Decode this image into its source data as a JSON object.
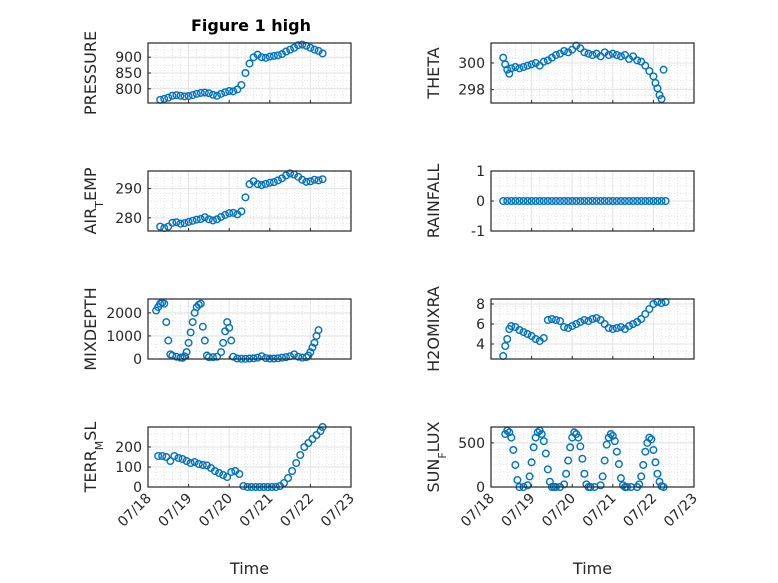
{
  "figure_title": "Figure 1 high",
  "marker_color": "#0072BD",
  "chart_data": [
    {
      "type": "scatter",
      "ylabel": "PRESSURE",
      "title": "Figure 1 high",
      "xlabel": "",
      "xlim": [
        "07/18",
        "07/23"
      ],
      "ylim": [
        755,
        945
      ],
      "yticks": [
        "800",
        "850",
        "900"
      ],
      "grid": true,
      "minor_grid": true,
      "show_xticklabels": false,
      "x": [
        18.3,
        18.4,
        18.5,
        18.6,
        18.7,
        18.8,
        18.9,
        19.0,
        19.1,
        19.2,
        19.3,
        19.4,
        19.5,
        19.6,
        19.7,
        19.8,
        19.9,
        20.0,
        20.1,
        20.2,
        20.3,
        20.4,
        20.5,
        20.6,
        20.7,
        20.8,
        20.9,
        21.0,
        21.1,
        21.2,
        21.3,
        21.4,
        21.5,
        21.6,
        21.7,
        21.8,
        21.9,
        22.0,
        22.1,
        22.2,
        22.3
      ],
      "y": [
        765,
        768,
        772,
        778,
        780,
        778,
        776,
        777,
        780,
        784,
        787,
        788,
        786,
        781,
        778,
        784,
        789,
        793,
        792,
        798,
        812,
        850,
        880,
        900,
        908,
        900,
        898,
        902,
        904,
        906,
        910,
        918,
        924,
        930,
        938,
        940,
        936,
        930,
        924,
        920,
        912
      ]
    },
    {
      "type": "scatter",
      "ylabel": "THETA",
      "title": "",
      "xlabel": "",
      "xlim": [
        "07/18",
        "07/23"
      ],
      "ylim": [
        297,
        301.5
      ],
      "yticks": [
        "298",
        "300"
      ],
      "grid": true,
      "minor_grid": true,
      "show_xticklabels": false,
      "x": [
        18.3,
        18.35,
        18.4,
        18.45,
        18.5,
        18.6,
        18.7,
        18.8,
        18.9,
        19.0,
        19.1,
        19.2,
        19.3,
        19.4,
        19.5,
        19.6,
        19.7,
        19.8,
        19.9,
        20.0,
        20.1,
        20.2,
        20.3,
        20.4,
        20.5,
        20.6,
        20.7,
        20.8,
        20.9,
        21.0,
        21.1,
        21.2,
        21.3,
        21.4,
        21.5,
        21.6,
        21.7,
        21.8,
        21.9,
        22.0,
        22.05,
        22.1,
        22.15,
        22.2,
        22.25
      ],
      "y": [
        300.4,
        299.9,
        299.5,
        299.2,
        299.6,
        299.7,
        299.6,
        299.7,
        299.8,
        299.9,
        300.0,
        299.8,
        300.1,
        300.2,
        300.4,
        300.6,
        300.7,
        300.9,
        300.8,
        301.0,
        301.3,
        301.1,
        300.8,
        300.7,
        300.6,
        300.7,
        300.5,
        300.8,
        300.6,
        300.7,
        300.6,
        300.5,
        300.6,
        300.3,
        300.5,
        300.2,
        300.1,
        299.8,
        299.4,
        299.0,
        298.5,
        298.1,
        297.6,
        297.3,
        299.5
      ]
    },
    {
      "type": "scatter",
      "ylabel": "AIR_TEMP",
      "title": "",
      "xlabel": "",
      "xlim": [
        "07/18",
        "07/23"
      ],
      "ylim": [
        275.5,
        296
      ],
      "yticks": [
        "280",
        "290"
      ],
      "grid": true,
      "minor_grid": true,
      "show_xticklabels": false,
      "x": [
        18.3,
        18.4,
        18.5,
        18.6,
        18.7,
        18.8,
        18.9,
        19.0,
        19.1,
        19.2,
        19.3,
        19.4,
        19.5,
        19.6,
        19.7,
        19.8,
        19.9,
        20.0,
        20.1,
        20.2,
        20.3,
        20.4,
        20.5,
        20.6,
        20.7,
        20.8,
        20.9,
        21.0,
        21.1,
        21.2,
        21.3,
        21.4,
        21.5,
        21.6,
        21.7,
        21.8,
        21.9,
        22.0,
        22.1,
        22.2,
        22.3
      ],
      "y": [
        277,
        276.5,
        277,
        278.3,
        278.5,
        278,
        278.2,
        278.6,
        279,
        279.4,
        279.6,
        280.2,
        279.5,
        279.1,
        279.5,
        280.3,
        281,
        281.6,
        281.7,
        281.2,
        282.2,
        287,
        291.5,
        292.5,
        291.5,
        291.2,
        291.6,
        292,
        292.2,
        292.8,
        293.5,
        294.5,
        295.2,
        294.8,
        294,
        293,
        292.3,
        292.5,
        293,
        292.8,
        293.2
      ]
    },
    {
      "type": "scatter",
      "ylabel": "RAINFALL",
      "title": "",
      "xlabel": "",
      "xlim": [
        "07/18",
        "07/23"
      ],
      "ylim": [
        -1,
        1
      ],
      "yticks": [
        "-1",
        "0",
        "1"
      ],
      "grid": true,
      "minor_grid": true,
      "show_xticklabels": false,
      "x": [
        18.3,
        18.4,
        18.5,
        18.6,
        18.7,
        18.8,
        18.9,
        19.0,
        19.1,
        19.2,
        19.3,
        19.4,
        19.5,
        19.6,
        19.7,
        19.8,
        19.9,
        20.0,
        20.1,
        20.2,
        20.3,
        20.4,
        20.5,
        20.6,
        20.7,
        20.8,
        20.9,
        21.0,
        21.1,
        21.2,
        21.3,
        21.4,
        21.5,
        21.6,
        21.7,
        21.8,
        21.9,
        22.0,
        22.1,
        22.2,
        22.3
      ],
      "y": [
        0,
        0,
        0,
        0,
        0,
        0,
        0,
        0,
        0,
        0,
        0,
        0,
        0,
        0,
        0,
        0,
        0,
        0,
        0,
        0,
        0,
        0,
        0,
        0,
        0,
        0,
        0,
        0,
        0,
        0,
        0,
        0,
        0,
        0,
        0,
        0,
        0,
        0,
        0,
        0,
        0
      ]
    },
    {
      "type": "scatter",
      "ylabel": "MIXDEPTH",
      "title": "",
      "xlabel": "",
      "xlim": [
        "07/18",
        "07/23"
      ],
      "ylim": [
        0,
        2600
      ],
      "yticks": [
        "0",
        "1000",
        "2000"
      ],
      "grid": true,
      "minor_grid": true,
      "show_xticklabels": false,
      "x": [
        18.2,
        18.25,
        18.3,
        18.35,
        18.4,
        18.45,
        18.5,
        18.55,
        18.6,
        18.7,
        18.8,
        18.85,
        18.9,
        18.95,
        19.0,
        19.05,
        19.1,
        19.15,
        19.2,
        19.25,
        19.3,
        19.35,
        19.4,
        19.45,
        19.5,
        19.6,
        19.7,
        19.8,
        19.85,
        19.9,
        19.95,
        20.0,
        20.05,
        20.1,
        20.2,
        20.3,
        20.4,
        20.5,
        20.6,
        20.7,
        20.8,
        20.9,
        21.0,
        21.1,
        21.2,
        21.3,
        21.4,
        21.5,
        21.6,
        21.7,
        21.8,
        21.9,
        21.95,
        22.0,
        22.05,
        22.1,
        22.15,
        22.2
      ],
      "y": [
        2100,
        2250,
        2400,
        2450,
        2400,
        1600,
        800,
        200,
        150,
        100,
        60,
        50,
        120,
        300,
        700,
        1150,
        1600,
        2000,
        2250,
        2350,
        2400,
        1400,
        800,
        150,
        80,
        80,
        100,
        300,
        700,
        1200,
        1600,
        1350,
        800,
        100,
        20,
        10,
        10,
        20,
        30,
        60,
        120,
        40,
        20,
        20,
        30,
        60,
        80,
        120,
        200,
        100,
        60,
        80,
        150,
        300,
        500,
        700,
        1000,
        1250
      ]
    },
    {
      "type": "scatter",
      "ylabel": "H2OMIXRA",
      "title": "",
      "xlabel": "",
      "xlim": [
        "07/18",
        "07/23"
      ],
      "ylim": [
        2.5,
        8.5
      ],
      "yticks": [
        "4",
        "6",
        "8"
      ],
      "grid": true,
      "minor_grid": true,
      "show_xticklabels": false,
      "x": [
        18.3,
        18.35,
        18.4,
        18.45,
        18.5,
        18.6,
        18.7,
        18.8,
        18.9,
        19.0,
        19.1,
        19.2,
        19.3,
        19.4,
        19.5,
        19.6,
        19.7,
        19.8,
        19.9,
        20.0,
        20.1,
        20.2,
        20.3,
        20.4,
        20.5,
        20.6,
        20.7,
        20.8,
        20.9,
        21.0,
        21.1,
        21.2,
        21.3,
        21.4,
        21.5,
        21.6,
        21.7,
        21.8,
        21.9,
        22.0,
        22.1,
        22.2,
        22.3
      ],
      "y": [
        2.8,
        3.8,
        4.5,
        5.5,
        5.8,
        5.7,
        5.4,
        5.2,
        5.0,
        4.8,
        4.5,
        4.3,
        4.6,
        6.4,
        6.5,
        6.4,
        6.3,
        5.7,
        5.6,
        5.8,
        6.0,
        6.2,
        6.4,
        6.3,
        6.5,
        6.6,
        6.4,
        6.0,
        5.6,
        5.5,
        5.6,
        5.7,
        5.5,
        5.8,
        6.0,
        6.2,
        6.5,
        7.0,
        7.5,
        8.0,
        8.2,
        8.1,
        8.2
      ]
    },
    {
      "type": "scatter",
      "ylabel": "TERR_MSL",
      "title": "",
      "xlabel": "Time",
      "xlim": [
        "07/18",
        "07/23"
      ],
      "ylim": [
        0,
        300
      ],
      "yticks": [
        "0",
        "100",
        "200"
      ],
      "xticks": [
        "07/18",
        "07/19",
        "07/20",
        "07/21",
        "07/22",
        "07/23"
      ],
      "grid": true,
      "minor_grid": true,
      "show_xticklabels": true,
      "x": [
        18.25,
        18.35,
        18.45,
        18.55,
        18.65,
        18.75,
        18.85,
        18.95,
        19.05,
        19.15,
        19.25,
        19.35,
        19.45,
        19.55,
        19.65,
        19.75,
        19.85,
        19.95,
        20.05,
        20.15,
        20.25,
        20.35,
        20.45,
        20.55,
        20.65,
        20.75,
        20.85,
        20.95,
        21.05,
        21.15,
        21.25,
        21.35,
        21.45,
        21.55,
        21.65,
        21.75,
        21.85,
        21.95,
        22.05,
        22.15,
        22.25,
        22.3
      ],
      "y": [
        155,
        155,
        150,
        130,
        155,
        145,
        140,
        130,
        120,
        125,
        115,
        110,
        108,
        95,
        80,
        70,
        60,
        50,
        75,
        80,
        65,
        5,
        0,
        0,
        0,
        0,
        0,
        0,
        0,
        0,
        5,
        20,
        45,
        80,
        120,
        160,
        200,
        220,
        240,
        260,
        280,
        300
      ]
    },
    {
      "type": "scatter",
      "ylabel": "SUN_FLUX",
      "title": "",
      "xlabel": "Time",
      "xlim": [
        "07/18",
        "07/23"
      ],
      "ylim": [
        0,
        680
      ],
      "yticks": [
        "0",
        "500"
      ],
      "xticks": [
        "07/18",
        "07/19",
        "07/20",
        "07/21",
        "07/22",
        "07/23"
      ],
      "grid": true,
      "minor_grid": true,
      "show_xticklabels": true,
      "x": [
        18.35,
        18.4,
        18.45,
        18.5,
        18.55,
        18.6,
        18.65,
        18.7,
        18.8,
        18.9,
        18.95,
        19.0,
        19.05,
        19.1,
        19.15,
        19.2,
        19.25,
        19.3,
        19.35,
        19.4,
        19.45,
        19.5,
        19.55,
        19.6,
        19.7,
        19.8,
        19.85,
        19.9,
        19.95,
        20.0,
        20.05,
        20.1,
        20.15,
        20.2,
        20.25,
        20.3,
        20.35,
        20.4,
        20.45,
        20.55,
        20.7,
        20.75,
        20.8,
        20.85,
        20.9,
        20.95,
        21.0,
        21.05,
        21.1,
        21.15,
        21.2,
        21.25,
        21.3,
        21.35,
        21.45,
        21.6,
        21.65,
        21.7,
        21.75,
        21.8,
        21.85,
        21.9,
        21.95,
        22.0,
        22.05,
        22.1,
        22.15,
        22.2,
        22.25
      ],
      "y": [
        600,
        640,
        620,
        560,
        420,
        250,
        80,
        0,
        0,
        20,
        120,
        280,
        450,
        560,
        620,
        640,
        600,
        520,
        380,
        200,
        60,
        0,
        0,
        0,
        0,
        30,
        150,
        300,
        450,
        560,
        620,
        600,
        560,
        460,
        320,
        150,
        30,
        0,
        0,
        0,
        20,
        120,
        300,
        480,
        560,
        600,
        580,
        520,
        400,
        260,
        100,
        20,
        0,
        0,
        0,
        0,
        30,
        120,
        250,
        400,
        500,
        560,
        540,
        420,
        280,
        150,
        60,
        10,
        0
      ]
    }
  ]
}
